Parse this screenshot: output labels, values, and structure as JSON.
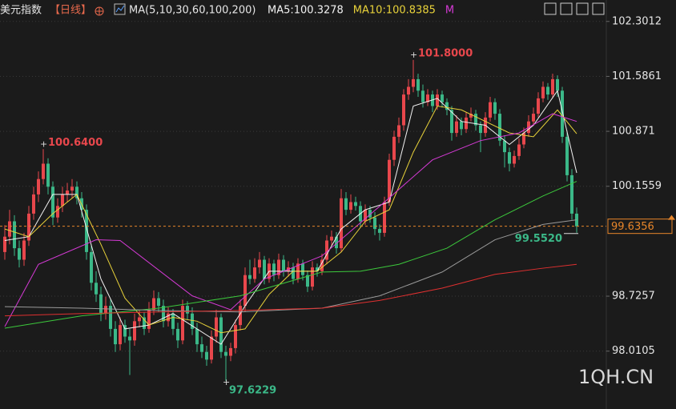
{
  "chart_data": {
    "type": "candlestick",
    "title": "美元指数",
    "period": "【日线】",
    "ma_label": "MA(5,10,30,60,100,200)",
    "ma_readouts": [
      {
        "label": "MA5:100.3278",
        "color": "#f2f2f2"
      },
      {
        "label": "MA10:100.8385",
        "color": "#e8d23a"
      },
      {
        "label": "M",
        "color": "#d63ad6"
      }
    ],
    "watermark": "1QH.CN",
    "up_color": "#e8474c",
    "down_color": "#3bb888",
    "ylim": [
      97.32,
      102.58
    ],
    "yticks": [
      102.3012,
      101.5861,
      100.871,
      100.1559,
      98.7257,
      98.0105
    ],
    "grid": true,
    "last_price": 99.6356,
    "last_price_color": "#e8862a",
    "ohlc": [
      [
        99.3,
        99.65,
        99.2,
        99.5
      ],
      [
        99.5,
        99.85,
        99.4,
        99.7
      ],
      [
        99.7,
        99.78,
        99.25,
        99.35
      ],
      [
        99.35,
        99.45,
        99.1,
        99.2
      ],
      [
        99.2,
        99.55,
        99.12,
        99.45
      ],
      [
        99.45,
        99.9,
        99.38,
        99.8
      ],
      [
        99.8,
        100.15,
        99.72,
        100.05
      ],
      [
        100.05,
        100.35,
        99.95,
        100.25
      ],
      [
        100.25,
        100.64,
        100.18,
        100.45
      ],
      [
        100.45,
        100.52,
        100.05,
        100.15
      ],
      [
        100.15,
        100.22,
        99.65,
        99.75
      ],
      [
        99.75,
        100.0,
        99.68,
        99.9
      ],
      [
        99.9,
        100.15,
        99.82,
        100.05
      ],
      [
        100.05,
        100.2,
        99.95,
        100.1
      ],
      [
        100.1,
        100.25,
        100.0,
        100.15
      ],
      [
        100.15,
        100.22,
        99.92,
        100.0
      ],
      [
        100.0,
        100.08,
        99.75,
        99.85
      ],
      [
        99.85,
        99.92,
        99.2,
        99.3
      ],
      [
        99.3,
        99.4,
        98.8,
        98.9
      ],
      [
        98.9,
        99.05,
        98.65,
        98.75
      ],
      [
        98.75,
        98.85,
        98.4,
        98.5
      ],
      [
        98.5,
        98.72,
        98.42,
        98.6
      ],
      [
        98.6,
        98.68,
        98.2,
        98.3
      ],
      [
        98.3,
        98.4,
        98.0,
        98.1
      ],
      [
        98.1,
        98.45,
        98.02,
        98.35
      ],
      [
        98.35,
        98.42,
        98.12,
        98.2
      ],
      [
        98.2,
        98.3,
        97.7,
        98.15
      ],
      [
        98.15,
        98.5,
        98.08,
        98.4
      ],
      [
        98.4,
        98.55,
        98.32,
        98.45
      ],
      [
        98.45,
        98.52,
        98.22,
        98.3
      ],
      [
        98.3,
        98.65,
        98.25,
        98.55
      ],
      [
        98.55,
        98.8,
        98.48,
        98.7
      ],
      [
        98.7,
        98.78,
        98.52,
        98.6
      ],
      [
        98.6,
        98.68,
        98.32,
        98.4
      ],
      [
        98.4,
        98.58,
        98.33,
        98.5
      ],
      [
        98.5,
        98.56,
        98.22,
        98.3
      ],
      [
        98.3,
        98.38,
        98.05,
        98.15
      ],
      [
        98.15,
        98.68,
        98.1,
        98.6
      ],
      [
        98.6,
        98.66,
        98.42,
        98.5
      ],
      [
        98.5,
        98.58,
        98.22,
        98.3
      ],
      [
        98.3,
        98.38,
        98.0,
        98.1
      ],
      [
        98.1,
        98.2,
        97.92,
        98.0
      ],
      [
        98.0,
        98.08,
        97.82,
        97.9
      ],
      [
        97.9,
        98.28,
        97.85,
        98.2
      ],
      [
        98.2,
        98.55,
        98.12,
        98.45
      ],
      [
        98.45,
        98.5,
        97.92,
        98.0
      ],
      [
        98.0,
        98.08,
        97.6229,
        97.95
      ],
      [
        97.95,
        98.12,
        97.88,
        98.05
      ],
      [
        98.05,
        98.42,
        97.98,
        98.35
      ],
      [
        98.35,
        98.68,
        98.28,
        98.6
      ],
      [
        98.6,
        99.1,
        98.52,
        99.0
      ],
      [
        99.0,
        99.2,
        98.88,
        98.95
      ],
      [
        98.95,
        99.22,
        98.9,
        99.1
      ],
      [
        99.1,
        99.3,
        99.02,
        99.2
      ],
      [
        99.2,
        99.25,
        98.88,
        98.95
      ],
      [
        98.95,
        99.22,
        98.9,
        99.15
      ],
      [
        99.15,
        99.2,
        98.92,
        99.0
      ],
      [
        99.0,
        99.28,
        98.95,
        99.2
      ],
      [
        99.2,
        99.26,
        98.98,
        99.05
      ],
      [
        99.05,
        99.18,
        98.98,
        99.1
      ],
      [
        99.1,
        99.16,
        98.88,
        98.95
      ],
      [
        98.95,
        99.22,
        98.9,
        99.15
      ],
      [
        99.15,
        99.2,
        98.93,
        99.0
      ],
      [
        99.0,
        99.06,
        98.78,
        98.85
      ],
      [
        98.85,
        99.18,
        98.8,
        99.1
      ],
      [
        99.1,
        99.15,
        98.98,
        99.05
      ],
      [
        99.05,
        99.28,
        99.0,
        99.2
      ],
      [
        99.2,
        99.52,
        99.14,
        99.45
      ],
      [
        99.45,
        99.58,
        99.38,
        99.5
      ],
      [
        99.5,
        99.56,
        99.28,
        99.35
      ],
      [
        99.35,
        100.12,
        99.3,
        100.0
      ],
      [
        100.0,
        100.08,
        99.78,
        99.85
      ],
      [
        99.85,
        100.05,
        99.8,
        99.95
      ],
      [
        99.95,
        100.02,
        99.84,
        99.9
      ],
      [
        99.9,
        99.96,
        99.62,
        99.7
      ],
      [
        99.7,
        99.92,
        99.65,
        99.85
      ],
      [
        99.85,
        99.9,
        99.68,
        99.75
      ],
      [
        99.75,
        99.82,
        99.52,
        99.6
      ],
      [
        99.6,
        99.66,
        99.45,
        99.55
      ],
      [
        99.55,
        100.02,
        99.5,
        99.95
      ],
      [
        99.95,
        100.58,
        99.9,
        100.5
      ],
      [
        100.5,
        100.88,
        100.42,
        100.8
      ],
      [
        100.8,
        101.05,
        100.72,
        100.95
      ],
      [
        100.95,
        101.42,
        100.88,
        101.35
      ],
      [
        101.35,
        101.55,
        101.28,
        101.45
      ],
      [
        101.45,
        101.8,
        101.38,
        101.55
      ],
      [
        101.55,
        101.62,
        101.32,
        101.4
      ],
      [
        101.4,
        101.48,
        101.18,
        101.25
      ],
      [
        101.25,
        101.42,
        101.2,
        101.35
      ],
      [
        101.35,
        101.4,
        101.12,
        101.2
      ],
      [
        101.2,
        101.42,
        101.15,
        101.35
      ],
      [
        101.35,
        101.4,
        101.18,
        101.25
      ],
      [
        101.25,
        101.3,
        101.08,
        101.15
      ],
      [
        101.15,
        101.2,
        100.75,
        100.85
      ],
      [
        100.85,
        101.08,
        100.8,
        101.0
      ],
      [
        101.0,
        101.05,
        100.82,
        100.9
      ],
      [
        100.9,
        101.12,
        100.85,
        101.05
      ],
      [
        101.05,
        101.18,
        101.0,
        101.1
      ],
      [
        101.1,
        101.15,
        100.88,
        100.95
      ],
      [
        100.95,
        101.0,
        100.6,
        100.85
      ],
      [
        100.85,
        101.12,
        100.8,
        101.05
      ],
      [
        101.05,
        101.32,
        101.0,
        101.25
      ],
      [
        101.25,
        101.3,
        101.02,
        101.1
      ],
      [
        101.1,
        101.16,
        100.68,
        100.75
      ],
      [
        100.75,
        100.82,
        100.4,
        100.6
      ],
      [
        100.6,
        100.66,
        100.35,
        100.45
      ],
      [
        100.45,
        100.62,
        100.4,
        100.55
      ],
      [
        100.55,
        100.78,
        100.5,
        100.7
      ],
      [
        100.7,
        100.92,
        100.65,
        100.85
      ],
      [
        100.85,
        101.08,
        100.8,
        101.0
      ],
      [
        101.0,
        101.18,
        100.95,
        101.1
      ],
      [
        101.1,
        101.38,
        101.05,
        101.3
      ],
      [
        101.3,
        101.52,
        101.25,
        101.45
      ],
      [
        101.45,
        101.5,
        101.28,
        101.35
      ],
      [
        101.35,
        101.62,
        101.3,
        101.55
      ],
      [
        101.55,
        101.6,
        101.32,
        101.4
      ],
      [
        101.4,
        101.45,
        100.72,
        100.8
      ],
      [
        100.8,
        100.88,
        100.22,
        100.3
      ],
      [
        100.3,
        100.38,
        99.72,
        99.8
      ],
      [
        99.8,
        99.88,
        99.552,
        99.6356
      ]
    ],
    "ma_lines": [
      {
        "color": "#f2f2f2",
        "x": [
          0,
          5,
          10,
          15,
          20,
          25,
          30,
          35,
          40,
          45,
          50,
          55,
          60,
          65,
          70,
          75,
          80,
          85,
          90,
          95,
          100,
          105,
          110,
          115,
          119
        ],
        "values": [
          99.45,
          99.5,
          100.05,
          100.05,
          98.95,
          98.3,
          98.35,
          98.5,
          98.3,
          98.1,
          98.6,
          99.05,
          99.05,
          99.05,
          99.6,
          99.85,
          99.95,
          101.2,
          101.3,
          101.0,
          100.95,
          100.7,
          100.95,
          101.4,
          100.33
        ]
      },
      {
        "color": "#e8d23a",
        "x": [
          0,
          5,
          10,
          15,
          20,
          25,
          30,
          35,
          40,
          45,
          50,
          55,
          60,
          65,
          70,
          75,
          80,
          85,
          90,
          95,
          100,
          105,
          110,
          115,
          119
        ],
        "values": [
          99.6,
          99.5,
          99.8,
          100.05,
          99.4,
          98.7,
          98.35,
          98.45,
          98.4,
          98.25,
          98.3,
          98.75,
          99.05,
          99.05,
          99.3,
          99.7,
          99.85,
          100.6,
          101.2,
          101.15,
          101.0,
          100.85,
          100.8,
          101.15,
          100.84
        ]
      },
      {
        "color": "#d63ad6",
        "x": [
          0,
          7,
          19,
          24,
          39,
          47,
          54,
          66,
          79,
          89,
          99,
          107,
          114,
          119
        ],
        "values": [
          98.33,
          99.14,
          99.46,
          99.45,
          98.73,
          98.55,
          98.95,
          99.25,
          99.95,
          100.5,
          100.75,
          100.85,
          101.1,
          101.0
        ]
      },
      {
        "color": "#3cc83c",
        "x": [
          0,
          16,
          32,
          49,
          66,
          74,
          82,
          92,
          102,
          112,
          119
        ],
        "values": [
          98.31,
          98.47,
          98.57,
          98.73,
          99.04,
          99.05,
          99.14,
          99.35,
          99.72,
          100.03,
          100.22
        ]
      },
      {
        "color": "#9a9a9a",
        "x": [
          0,
          16,
          32,
          49,
          66,
          78,
          91,
          102,
          112,
          119
        ],
        "values": [
          98.59,
          98.57,
          98.54,
          98.52,
          98.57,
          98.73,
          99.04,
          99.46,
          99.66,
          99.72
        ]
      },
      {
        "color": "#e03030",
        "x": [
          0,
          16,
          32,
          49,
          66,
          78,
          91,
          102,
          112,
          119
        ],
        "values": [
          98.47,
          98.5,
          98.52,
          98.54,
          98.57,
          98.67,
          98.83,
          99.01,
          99.09,
          99.14
        ]
      }
    ],
    "annotations": [
      {
        "value": 101.8,
        "label": "101.8000",
        "at": "high"
      },
      {
        "value": 100.64,
        "label": "100.6400",
        "at": "high"
      },
      {
        "value": 97.6229,
        "label": "97.6229",
        "at": "low"
      },
      {
        "value": 99.552,
        "label": "99.5520",
        "at": "low"
      }
    ]
  }
}
